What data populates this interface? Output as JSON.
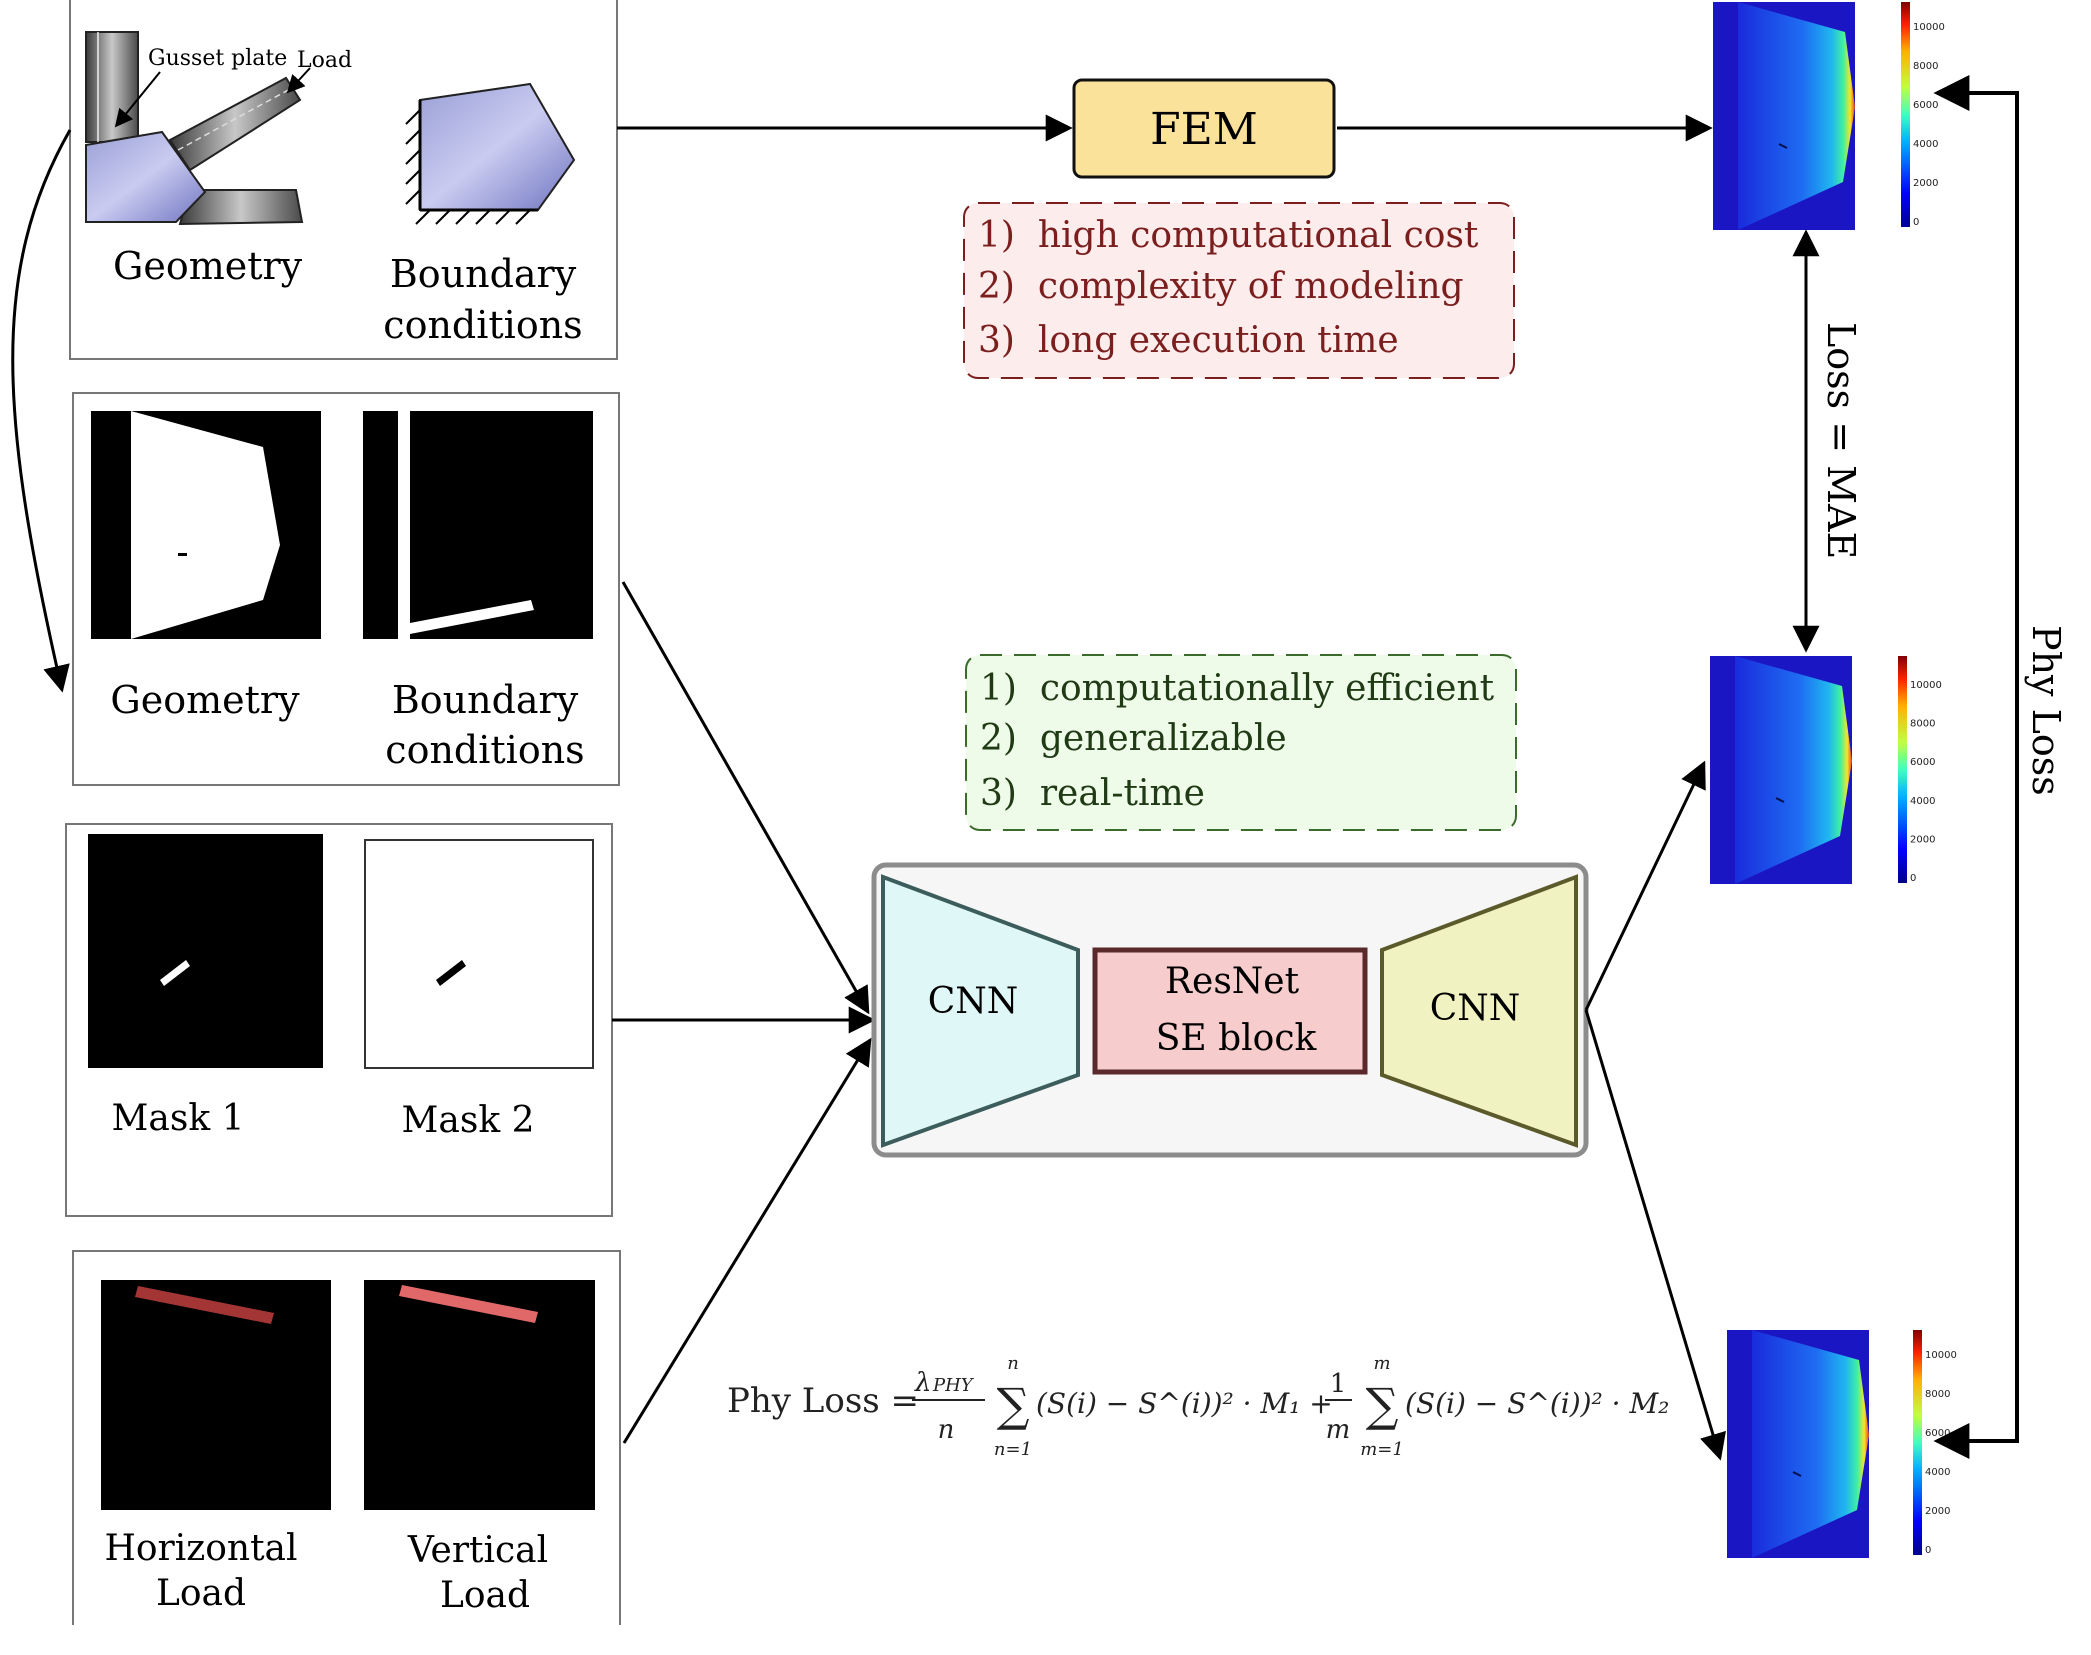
{
  "top_panel": {
    "gusset_label": "Gusset plate",
    "load_label": "Load",
    "geometry_label": "Geometry",
    "boundary_label_1": "Boundary",
    "boundary_label_2": "conditions"
  },
  "mask_panel_1": {
    "geometry_label": "Geometry",
    "boundary_label_1": "Boundary",
    "boundary_label_2": "conditions"
  },
  "mask_panel_2": {
    "mask1_label": "Mask 1",
    "mask2_label": "Mask 2"
  },
  "mask_panel_3": {
    "horizontal_1": "Horizontal",
    "horizontal_2": "Load",
    "vertical_1": "Vertical",
    "vertical_2": "Load"
  },
  "fem": {
    "label": "FEM",
    "drawbacks": [
      "1)  high computational cost",
      "2)  complexity of modeling",
      "3)  long execution time"
    ]
  },
  "network": {
    "encoder_label": "CNN",
    "middle_label_1": "ResNet",
    "middle_label_2": "SE block",
    "decoder_label": "CNN",
    "benefits": [
      "1)  computationally efficient",
      "2)  generalizable",
      "3)  real-time"
    ]
  },
  "losses": {
    "mae_label": "Loss = MAE",
    "phy_label": "Phy Loss"
  },
  "formula": {
    "lhs": "Phy Loss =",
    "lambda": "λ",
    "lambda_sub": "PHY",
    "n": "n",
    "one": "1",
    "m": "m",
    "sum_top_1": "n",
    "sum_bot_1": "n=1",
    "sum_top_2": "m",
    "sum_bot_2": "m=1",
    "term_1": "(S(i) − S^(i))² · M₁ +",
    "term_2": "(S(i) − S^(i))² · M₂"
  },
  "colorbar_ticks": [
    "10000",
    "8000",
    "6000",
    "4000",
    "2000",
    "0"
  ],
  "colors": {
    "fem_fill": "#fbe29a",
    "red_box_fill": "#fdecec",
    "red_text": "#7a1e1e",
    "green_box_fill": "#eefbe8",
    "encoder_fill": "#dff7f7",
    "resnet_fill": "#f7cccc",
    "decoder_fill": "#f1f2c2"
  }
}
